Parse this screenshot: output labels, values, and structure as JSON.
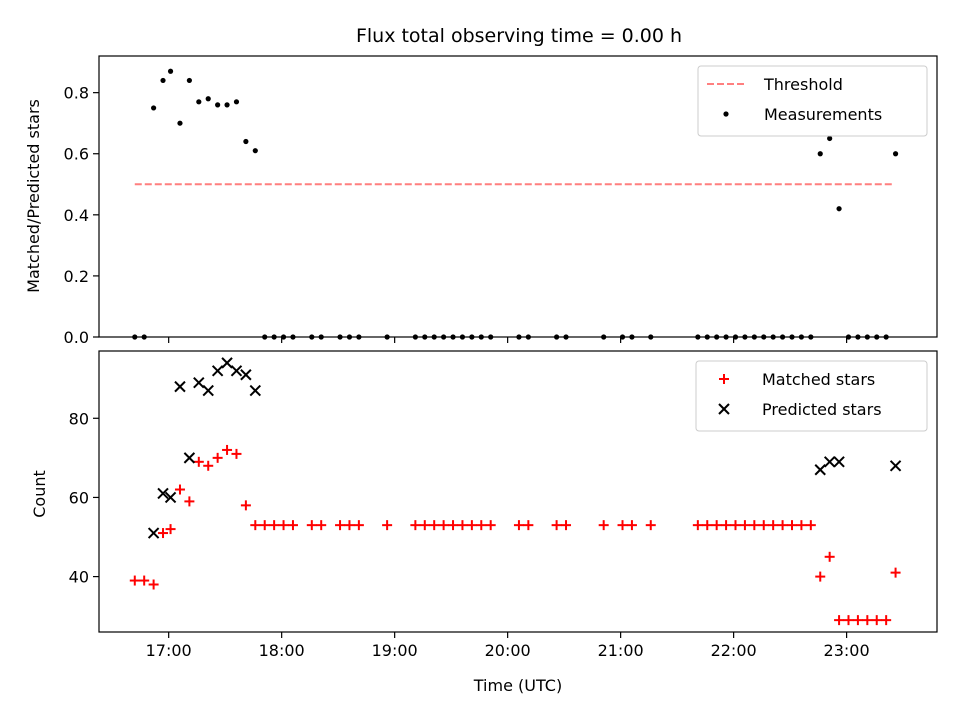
{
  "chart_data": [
    {
      "type": "scatter",
      "title": "Flux total observing time = 0.00 h",
      "ylabel": "Matched/Predicted stars",
      "xlabel": "",
      "xlim": [
        "16:23",
        "23:48"
      ],
      "ylim": [
        0,
        0.92
      ],
      "yticks": [
        "0.0",
        "0.2",
        "0.4",
        "0.6",
        "0.8"
      ],
      "legend_position": "top-right",
      "threshold": {
        "name": "Threshold",
        "color": "#ff7f7f",
        "style": "dashed",
        "value": 0.5,
        "x_start": "16:42",
        "x_end": "23:24"
      },
      "series": [
        {
          "name": "Measurements",
          "color": "#000000",
          "marker": "dot",
          "points": [
            [
              "16:42",
              0
            ],
            [
              "16:47",
              0
            ],
            [
              "16:52",
              0.75
            ],
            [
              "16:57",
              0.84
            ],
            [
              "17:01",
              0.87
            ],
            [
              "17:06",
              0.7
            ],
            [
              "17:11",
              0.84
            ],
            [
              "17:16",
              0.77
            ],
            [
              "17:21",
              0.78
            ],
            [
              "17:26",
              0.76
            ],
            [
              "17:31",
              0.76
            ],
            [
              "17:36",
              0.77
            ],
            [
              "17:41",
              0.64
            ],
            [
              "17:46",
              0.61
            ],
            [
              "17:51",
              0
            ],
            [
              "17:56",
              0
            ],
            [
              "18:01",
              0
            ],
            [
              "18:06",
              0
            ],
            [
              "18:16",
              0
            ],
            [
              "18:21",
              0
            ],
            [
              "18:31",
              0
            ],
            [
              "18:36",
              0
            ],
            [
              "18:41",
              0
            ],
            [
              "18:56",
              0
            ],
            [
              "19:11",
              0
            ],
            [
              "19:16",
              0
            ],
            [
              "19:21",
              0
            ],
            [
              "19:26",
              0
            ],
            [
              "19:31",
              0
            ],
            [
              "19:36",
              0
            ],
            [
              "19:41",
              0
            ],
            [
              "19:46",
              0
            ],
            [
              "19:51",
              0
            ],
            [
              "20:06",
              0
            ],
            [
              "20:11",
              0
            ],
            [
              "20:26",
              0
            ],
            [
              "20:31",
              0
            ],
            [
              "20:51",
              0
            ],
            [
              "21:01",
              0
            ],
            [
              "21:06",
              0
            ],
            [
              "21:16",
              0
            ],
            [
              "21:41",
              0
            ],
            [
              "21:46",
              0
            ],
            [
              "21:51",
              0
            ],
            [
              "21:56",
              0
            ],
            [
              "22:01",
              0
            ],
            [
              "22:06",
              0
            ],
            [
              "22:11",
              0
            ],
            [
              "22:16",
              0
            ],
            [
              "22:21",
              0
            ],
            [
              "22:26",
              0
            ],
            [
              "22:31",
              0
            ],
            [
              "22:36",
              0
            ],
            [
              "22:41",
              0
            ],
            [
              "22:46",
              0.6
            ],
            [
              "22:51",
              0.65
            ],
            [
              "22:56",
              0.42
            ],
            [
              "23:01",
              0
            ],
            [
              "23:06",
              0
            ],
            [
              "23:11",
              0
            ],
            [
              "23:16",
              0
            ],
            [
              "23:21",
              0
            ],
            [
              "23:26",
              0.6
            ]
          ]
        }
      ]
    },
    {
      "type": "scatter",
      "title": "",
      "ylabel": "Count",
      "xlabel": "Time (UTC)",
      "xlim": [
        "16:23",
        "23:48"
      ],
      "ylim": [
        26,
        97
      ],
      "yticks": [
        "40",
        "60",
        "80"
      ],
      "xticks": [
        "17:00",
        "18:00",
        "19:00",
        "20:00",
        "21:00",
        "22:00",
        "23:00"
      ],
      "legend_position": "top-right",
      "series": [
        {
          "name": "Matched stars",
          "color": "#ff0000",
          "marker": "plus",
          "points": [
            [
              "16:42",
              39
            ],
            [
              "16:47",
              39
            ],
            [
              "16:52",
              38
            ],
            [
              "16:57",
              51
            ],
            [
              "17:01",
              52
            ],
            [
              "17:06",
              62
            ],
            [
              "17:11",
              59
            ],
            [
              "17:16",
              69
            ],
            [
              "17:21",
              68
            ],
            [
              "17:26",
              70
            ],
            [
              "17:31",
              72
            ],
            [
              "17:36",
              71
            ],
            [
              "17:41",
              58
            ],
            [
              "17:46",
              53
            ],
            [
              "17:51",
              53
            ],
            [
              "17:56",
              53
            ],
            [
              "18:01",
              53
            ],
            [
              "18:06",
              53
            ],
            [
              "18:16",
              53
            ],
            [
              "18:21",
              53
            ],
            [
              "18:31",
              53
            ],
            [
              "18:36",
              53
            ],
            [
              "18:41",
              53
            ],
            [
              "18:56",
              53
            ],
            [
              "19:11",
              53
            ],
            [
              "19:16",
              53
            ],
            [
              "19:21",
              53
            ],
            [
              "19:26",
              53
            ],
            [
              "19:31",
              53
            ],
            [
              "19:36",
              53
            ],
            [
              "19:41",
              53
            ],
            [
              "19:46",
              53
            ],
            [
              "19:51",
              53
            ],
            [
              "20:06",
              53
            ],
            [
              "20:11",
              53
            ],
            [
              "20:26",
              53
            ],
            [
              "20:31",
              53
            ],
            [
              "20:51",
              53
            ],
            [
              "21:01",
              53
            ],
            [
              "21:06",
              53
            ],
            [
              "21:16",
              53
            ],
            [
              "21:41",
              53
            ],
            [
              "21:46",
              53
            ],
            [
              "21:51",
              53
            ],
            [
              "21:56",
              53
            ],
            [
              "22:01",
              53
            ],
            [
              "22:06",
              53
            ],
            [
              "22:11",
              53
            ],
            [
              "22:16",
              53
            ],
            [
              "22:21",
              53
            ],
            [
              "22:26",
              53
            ],
            [
              "22:31",
              53
            ],
            [
              "22:36",
              53
            ],
            [
              "22:41",
              53
            ],
            [
              "22:46",
              40
            ],
            [
              "22:51",
              45
            ],
            [
              "22:56",
              29
            ],
            [
              "23:01",
              29
            ],
            [
              "23:06",
              29
            ],
            [
              "23:11",
              29
            ],
            [
              "23:16",
              29
            ],
            [
              "23:21",
              29
            ],
            [
              "23:26",
              41
            ]
          ]
        },
        {
          "name": "Predicted stars",
          "color": "#000000",
          "marker": "x",
          "points": [
            [
              "16:52",
              51
            ],
            [
              "16:57",
              61
            ],
            [
              "17:01",
              60
            ],
            [
              "17:06",
              88
            ],
            [
              "17:11",
              70
            ],
            [
              "17:16",
              89
            ],
            [
              "17:21",
              87
            ],
            [
              "17:26",
              92
            ],
            [
              "17:31",
              94
            ],
            [
              "17:36",
              92
            ],
            [
              "17:41",
              91
            ],
            [
              "17:46",
              87
            ],
            [
              "22:46",
              67
            ],
            [
              "22:51",
              69
            ],
            [
              "22:56",
              69
            ],
            [
              "23:26",
              68
            ]
          ]
        }
      ]
    }
  ]
}
